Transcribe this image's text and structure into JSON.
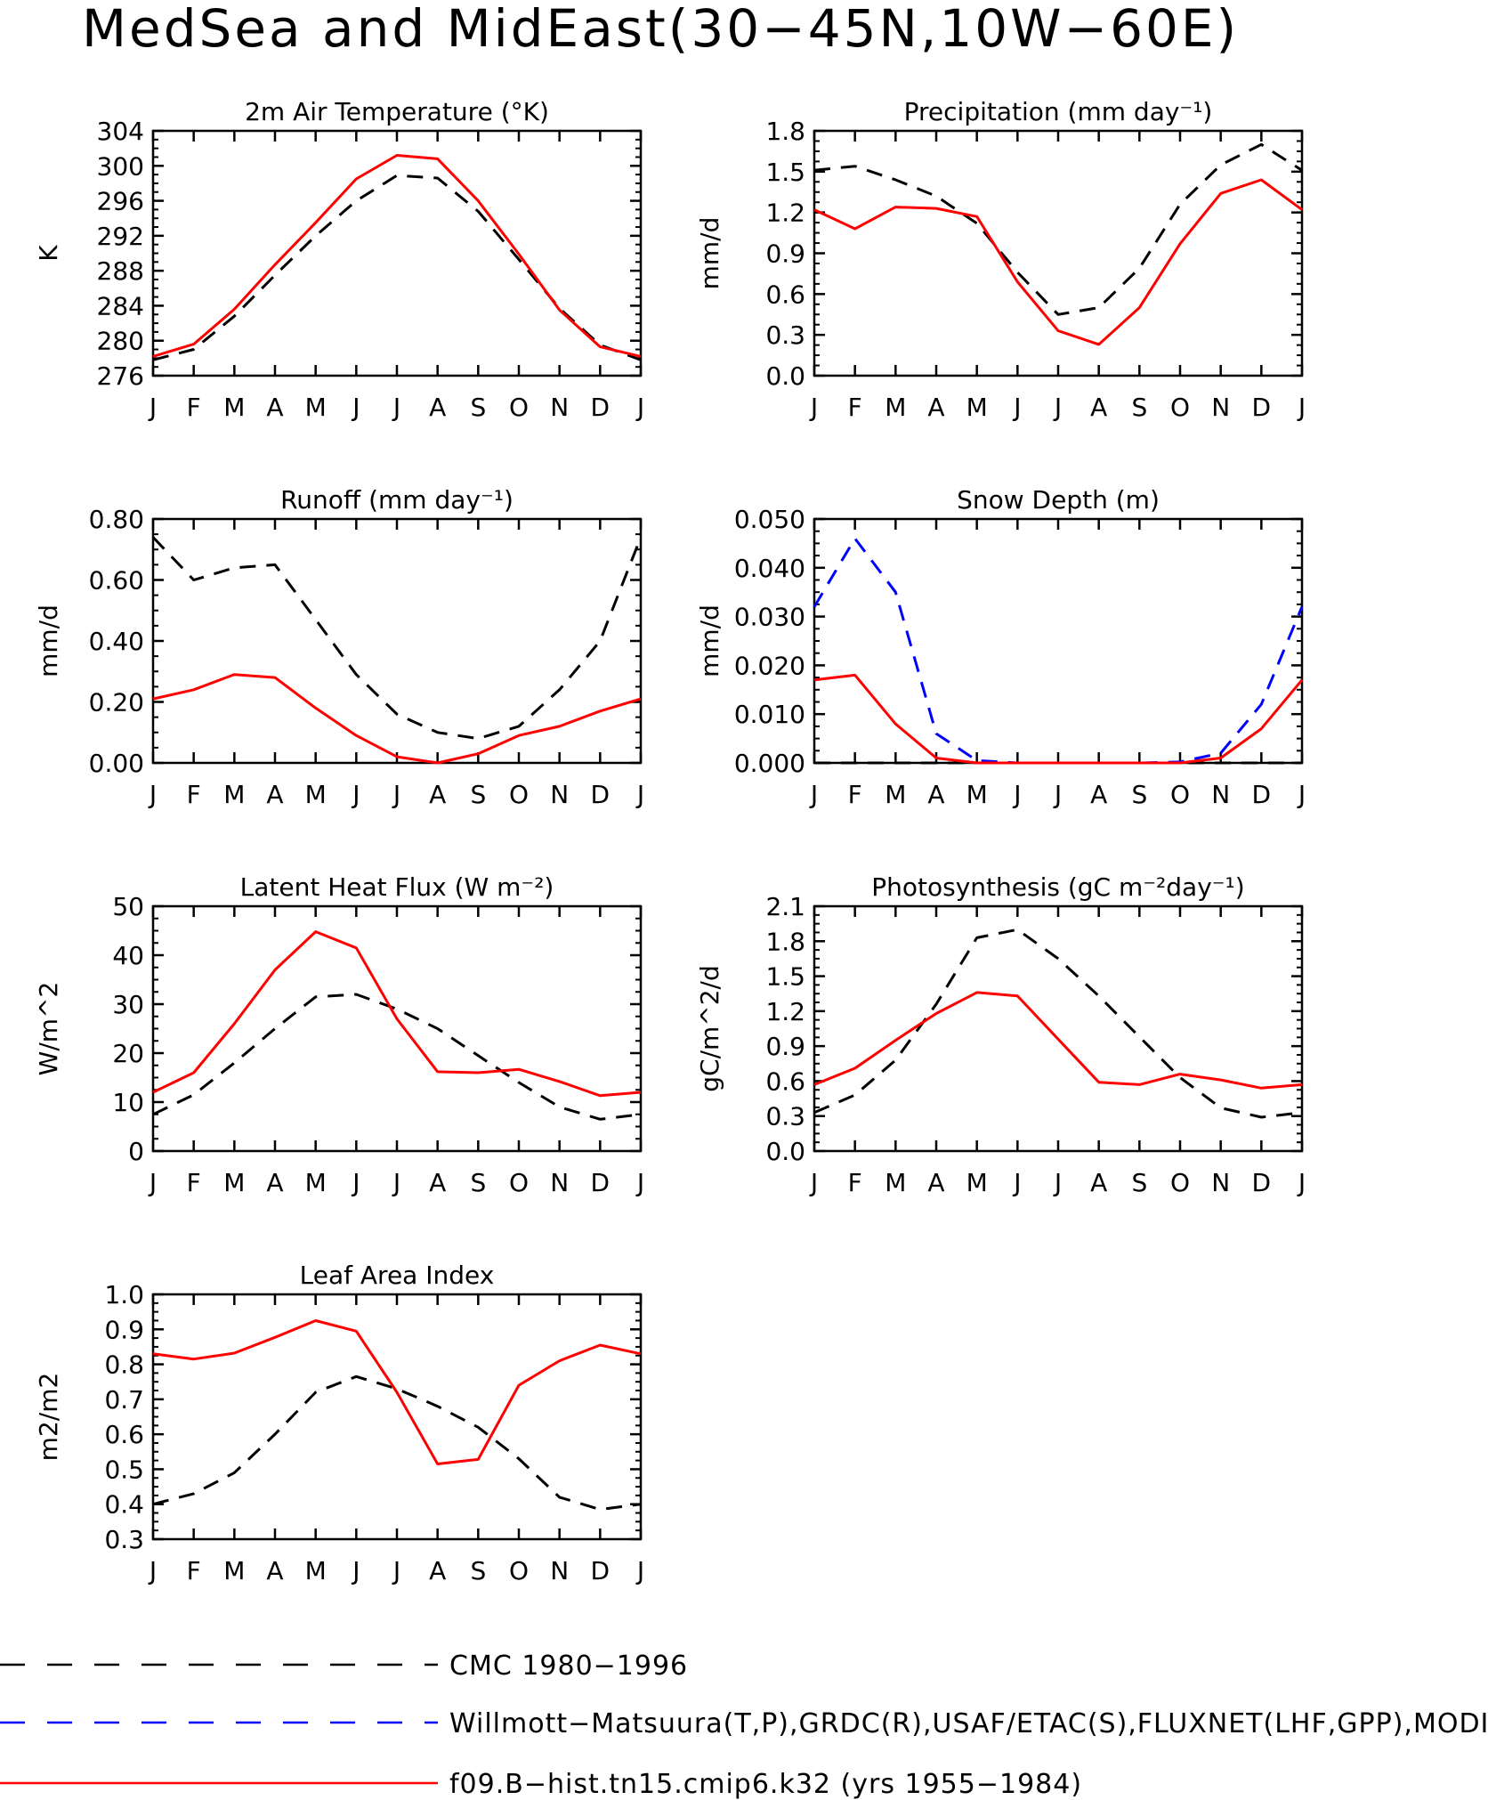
{
  "title": "MedSea and MidEast(30−45N,10W−60E)",
  "colors": {
    "obs": "#000000",
    "obs2": "#0000ff",
    "model": "#ff0000"
  },
  "legend": [
    {
      "label": "CMC 1980−1996",
      "color": "#000000",
      "dash": true
    },
    {
      "label": "Willmott−Matsuura(T,P),GRDC(R),USAF/ETAC(S),FLUXNET(LHF,GPP),MODIS(I",
      "color": "#0000ff",
      "dash": true
    },
    {
      "label": "f09.B−hist.tn15.cmip6.k32 (yrs 1955−1984)",
      "color": "#ff0000",
      "dash": false
    }
  ],
  "months": [
    "J",
    "F",
    "M",
    "A",
    "M",
    "J",
    "J",
    "A",
    "S",
    "O",
    "N",
    "D",
    "J"
  ],
  "chart_data": [
    {
      "type": "line",
      "title": "2m Air Temperature (°K)",
      "ylabel": "K",
      "ylim": [
        276,
        304
      ],
      "yticks": [
        "276",
        "280",
        "284",
        "288",
        "292",
        "296",
        "300",
        "304"
      ],
      "x": [
        "J",
        "F",
        "M",
        "A",
        "M",
        "J",
        "J",
        "A",
        "S",
        "O",
        "N",
        "D",
        "J"
      ],
      "series": [
        {
          "color": "#000000",
          "dash": true,
          "values": [
            277.8,
            279.0,
            282.8,
            287.5,
            292.0,
            296.0,
            298.9,
            298.6,
            294.8,
            289.3,
            283.7,
            279.5,
            277.8
          ]
        },
        {
          "color": "#ff0000",
          "dash": false,
          "values": [
            278.2,
            279.6,
            283.6,
            288.7,
            293.5,
            298.5,
            301.2,
            300.8,
            296.0,
            289.9,
            283.5,
            279.3,
            278.2
          ]
        }
      ]
    },
    {
      "type": "line",
      "title": "Precipitation (mm day⁻¹)",
      "ylabel": "mm/d",
      "ylim": [
        0,
        1.8
      ],
      "yticks": [
        "0.0",
        "0.3",
        "0.6",
        "0.9",
        "1.2",
        "1.5",
        "1.8"
      ],
      "x": [
        "J",
        "F",
        "M",
        "A",
        "M",
        "J",
        "J",
        "A",
        "S",
        "O",
        "N",
        "D",
        "J"
      ],
      "series": [
        {
          "color": "#000000",
          "dash": true,
          "values": [
            1.51,
            1.54,
            1.44,
            1.32,
            1.12,
            0.76,
            0.45,
            0.5,
            0.79,
            1.26,
            1.55,
            1.7,
            1.51
          ]
        },
        {
          "color": "#ff0000",
          "dash": false,
          "values": [
            1.22,
            1.08,
            1.24,
            1.23,
            1.17,
            0.69,
            0.33,
            0.23,
            0.5,
            0.97,
            1.34,
            1.44,
            1.22
          ]
        }
      ]
    },
    {
      "type": "line",
      "title": "Runoff (mm day⁻¹)",
      "ylabel": "mm/d",
      "ylim": [
        0,
        0.8
      ],
      "yticks": [
        "0.00",
        "0.20",
        "0.40",
        "0.60",
        "0.80"
      ],
      "x": [
        "J",
        "F",
        "M",
        "A",
        "M",
        "J",
        "J",
        "A",
        "S",
        "O",
        "N",
        "D",
        "J"
      ],
      "series": [
        {
          "color": "#000000",
          "dash": true,
          "values": [
            0.74,
            0.6,
            0.64,
            0.65,
            0.47,
            0.29,
            0.16,
            0.1,
            0.08,
            0.12,
            0.24,
            0.4,
            0.74
          ]
        },
        {
          "color": "#ff0000",
          "dash": false,
          "values": [
            0.21,
            0.24,
            0.29,
            0.28,
            0.18,
            0.09,
            0.02,
            0.0,
            0.03,
            0.09,
            0.12,
            0.17,
            0.21
          ]
        }
      ]
    },
    {
      "type": "line",
      "title": "Snow Depth (m)",
      "ylabel": "mm/d",
      "ylim": [
        0,
        0.05
      ],
      "yticks": [
        "0.000",
        "0.010",
        "0.020",
        "0.030",
        "0.040",
        "0.050"
      ],
      "x": [
        "J",
        "F",
        "M",
        "A",
        "M",
        "J",
        "J",
        "A",
        "S",
        "O",
        "N",
        "D",
        "J"
      ],
      "series": [
        {
          "color": "#000000",
          "dash": true,
          "values": [
            0.0,
            0.0,
            0.0,
            0.0,
            0.0,
            0.0,
            0.0,
            0.0,
            0.0,
            0.0,
            0.0,
            0.0,
            0.0
          ]
        },
        {
          "color": "#0000ff",
          "dash": true,
          "values": [
            0.032,
            0.046,
            0.035,
            0.006,
            0.0005,
            0.0,
            0.0,
            0.0,
            0.0,
            0.0002,
            0.002,
            0.012,
            0.032
          ]
        },
        {
          "color": "#ff0000",
          "dash": false,
          "values": [
            0.017,
            0.018,
            0.008,
            0.001,
            0.0,
            0.0,
            0.0,
            0.0,
            0.0,
            0.0,
            0.001,
            0.007,
            0.017
          ]
        }
      ]
    },
    {
      "type": "line",
      "title": "Latent Heat Flux (W m⁻²)",
      "ylabel": "W/m^2",
      "ylim": [
        0,
        50
      ],
      "yticks": [
        "0",
        "10",
        "20",
        "30",
        "40",
        "50"
      ],
      "x": [
        "J",
        "F",
        "M",
        "A",
        "M",
        "J",
        "J",
        "A",
        "S",
        "O",
        "N",
        "D",
        "J"
      ],
      "series": [
        {
          "color": "#000000",
          "dash": true,
          "values": [
            7.5,
            11.5,
            18.0,
            25.0,
            31.5,
            32.0,
            29.0,
            25.0,
            19.5,
            14.0,
            9.0,
            6.5,
            7.5
          ]
        },
        {
          "color": "#ff0000",
          "dash": false,
          "values": [
            12.0,
            16.0,
            26.0,
            37.0,
            44.8,
            41.5,
            27.0,
            16.2,
            16.0,
            16.7,
            14.2,
            11.3,
            12.0
          ]
        }
      ]
    },
    {
      "type": "line",
      "title": "Photosynthesis (gC m⁻²day⁻¹)",
      "ylabel": "gC/m^2/d",
      "ylim": [
        0,
        2.1
      ],
      "yticks": [
        "0.0",
        "0.3",
        "0.6",
        "0.9",
        "1.2",
        "1.5",
        "1.8",
        "2.1"
      ],
      "x": [
        "J",
        "F",
        "M",
        "A",
        "M",
        "J",
        "J",
        "A",
        "S",
        "O",
        "N",
        "D",
        "J"
      ],
      "series": [
        {
          "color": "#000000",
          "dash": true,
          "values": [
            0.33,
            0.48,
            0.78,
            1.26,
            1.83,
            1.9,
            1.65,
            1.33,
            0.98,
            0.63,
            0.37,
            0.29,
            0.33
          ]
        },
        {
          "color": "#ff0000",
          "dash": false,
          "values": [
            0.57,
            0.71,
            0.95,
            1.18,
            1.36,
            1.33,
            0.96,
            0.59,
            0.57,
            0.66,
            0.61,
            0.54,
            0.57
          ]
        }
      ]
    },
    {
      "type": "line",
      "title": "Leaf Area Index",
      "ylabel": "m2/m2",
      "ylim": [
        0.3,
        1.0
      ],
      "yticks": [
        "0.3",
        "0.4",
        "0.5",
        "0.6",
        "0.7",
        "0.8",
        "0.9",
        "1.0"
      ],
      "x": [
        "J",
        "F",
        "M",
        "A",
        "M",
        "J",
        "J",
        "A",
        "S",
        "O",
        "N",
        "D",
        "J"
      ],
      "series": [
        {
          "color": "#000000",
          "dash": true,
          "values": [
            0.4,
            0.43,
            0.49,
            0.6,
            0.72,
            0.765,
            0.73,
            0.68,
            0.62,
            0.53,
            0.42,
            0.385,
            0.4
          ]
        },
        {
          "color": "#ff0000",
          "dash": false,
          "values": [
            0.83,
            0.815,
            0.832,
            0.877,
            0.925,
            0.895,
            0.72,
            0.515,
            0.528,
            0.74,
            0.81,
            0.855,
            0.83
          ]
        }
      ]
    }
  ]
}
